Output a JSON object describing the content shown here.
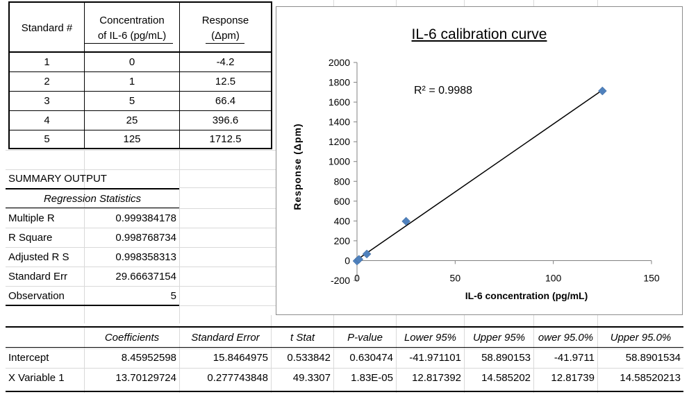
{
  "standards_table": {
    "headers": [
      "Standard #",
      "Concentration",
      "of IL-6 (pg/mL)",
      "Response",
      "(Δpm)"
    ],
    "rows": [
      {
        "standard": "1",
        "concentration": "0",
        "response": "-4.2"
      },
      {
        "standard": "2",
        "concentration": "1",
        "response": "12.5"
      },
      {
        "standard": "3",
        "concentration": "5",
        "response": "66.4"
      },
      {
        "standard": "4",
        "concentration": "25",
        "response": "396.6"
      },
      {
        "standard": "5",
        "concentration": "125",
        "response": "1712.5"
      }
    ]
  },
  "summary": {
    "title": "SUMMARY OUTPUT",
    "regression_title": "Regression Statistics",
    "stats": [
      {
        "label": "Multiple R",
        "value": "0.999384178"
      },
      {
        "label": "R Square",
        "value": "0.998768734"
      },
      {
        "label": "Adjusted R S",
        "value": "0.998358313"
      },
      {
        "label": "Standard Err",
        "value": "29.66637154"
      },
      {
        "label": "Observation",
        "value": "5"
      }
    ]
  },
  "coefficients_table": {
    "headers": [
      "Coefficients",
      "Standard Error",
      "t Stat",
      "P-value",
      "Lower 95%",
      "Upper 95%",
      "ower 95.0%",
      "Upper 95.0%"
    ],
    "rows": [
      {
        "label": "Intercept",
        "cells": [
          "8.45952598",
          "15.8464975",
          "0.533842",
          "0.630474",
          "-41.971101",
          "58.890153",
          "-41.9711",
          "58.8901534"
        ]
      },
      {
        "label": "X Variable 1",
        "cells": [
          "13.70129724",
          "0.277743848",
          "49.3307",
          "1.83E-05",
          "12.817392",
          "14.585202",
          "12.81739",
          "14.58520213"
        ]
      }
    ]
  },
  "chart_data": {
    "type": "scatter",
    "title": "IL-6 calibration curve",
    "xlabel": "IL-6 concentration (pg/mL)",
    "ylabel": "Response (Δpm)",
    "annotation": "R² = 0.9988",
    "x": [
      0,
      1,
      5,
      25,
      125
    ],
    "y": [
      -4.2,
      12.5,
      66.4,
      396.6,
      1712.5
    ],
    "xlim": [
      0,
      150
    ],
    "ylim": [
      -200,
      2000
    ],
    "xticks": [
      0,
      50,
      100,
      150
    ],
    "yticks": [
      -200,
      0,
      200,
      400,
      600,
      800,
      1000,
      1200,
      1400,
      1600,
      1800,
      2000
    ],
    "trendline": {
      "slope": 13.70129724,
      "intercept": 8.45952598
    },
    "marker_color": "#4f81bd",
    "line_color": "#000000"
  }
}
